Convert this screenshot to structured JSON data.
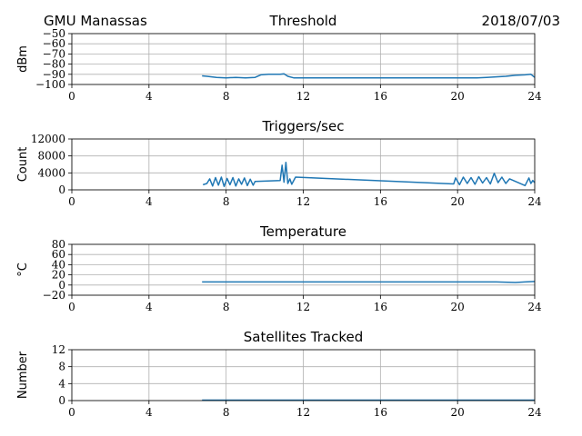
{
  "header": {
    "station": "GMU Manassas",
    "date": "2018/07/03"
  },
  "colors": {
    "series": "#1f77b4",
    "grid": "#b0b0b0",
    "axis": "#000000"
  },
  "chart_data": [
    {
      "type": "line",
      "title": "Threshold",
      "ylabel": "dBm",
      "xlim": [
        0,
        24
      ],
      "ylim": [
        -100,
        -50
      ],
      "xticks": [
        0,
        4,
        8,
        12,
        16,
        20,
        24
      ],
      "yticks": [
        -100,
        -90,
        -80,
        -70,
        -60,
        -50
      ],
      "ytick_labels": [
        "−100",
        "−90",
        "−80",
        "−70",
        "−60",
        "−50"
      ],
      "grid": true,
      "series": [
        {
          "x": [
            6.75,
            7.0,
            7.5,
            8.0,
            8.5,
            9.0,
            9.5,
            9.8,
            10.2,
            10.8,
            11.0,
            11.2,
            11.5,
            12,
            14,
            16,
            18,
            20,
            20.5,
            21,
            21.5,
            22,
            22.5,
            23.0,
            23.5,
            23.8,
            24.0
          ],
          "y": [
            -91.5,
            -92,
            -93,
            -93.5,
            -93,
            -93.5,
            -93,
            -90.5,
            -90,
            -90,
            -89.5,
            -92,
            -93.5,
            -93.5,
            -93.5,
            -93.5,
            -93.5,
            -93.5,
            -93.5,
            -93.5,
            -93,
            -92.5,
            -92,
            -91,
            -90.5,
            -90,
            -93
          ]
        }
      ]
    },
    {
      "type": "line",
      "title": "Triggers/sec",
      "ylabel": "Count",
      "xlim": [
        0,
        24
      ],
      "ylim": [
        0,
        12000
      ],
      "xticks": [
        0,
        4,
        8,
        12,
        16,
        20,
        24
      ],
      "yticks": [
        0,
        4000,
        8000,
        12000
      ],
      "ytick_labels": [
        "0",
        "4000",
        "8000",
        "12000"
      ],
      "grid": true,
      "series": [
        {
          "x": [
            6.8,
            7.0,
            7.15,
            7.3,
            7.45,
            7.6,
            7.75,
            7.9,
            8.05,
            8.2,
            8.35,
            8.5,
            8.65,
            8.8,
            8.95,
            9.1,
            9.25,
            9.4,
            9.5,
            10.8,
            10.9,
            11.0,
            11.1,
            11.2,
            11.3,
            11.4,
            11.6,
            19.8,
            19.9,
            20.1,
            20.3,
            20.5,
            20.7,
            20.9,
            21.1,
            21.3,
            21.5,
            21.7,
            21.9,
            22.1,
            22.3,
            22.5,
            22.7,
            23.5,
            23.7,
            23.8,
            23.9,
            24.0
          ],
          "y": [
            1200,
            1500,
            2600,
            900,
            2900,
            1100,
            3000,
            800,
            2700,
            1200,
            2900,
            900,
            2600,
            1300,
            2800,
            1000,
            2500,
            1100,
            2000,
            2200,
            5800,
            1800,
            6500,
            1500,
            2600,
            1300,
            3000,
            1400,
            2800,
            1200,
            3000,
            1500,
            2900,
            1300,
            3100,
            1600,
            2900,
            1400,
            3900,
            1700,
            3000,
            1500,
            2600,
            1000,
            2800,
            1500,
            2200,
            1700
          ]
        }
      ]
    },
    {
      "type": "line",
      "title": "Temperature",
      "ylabel": "°C",
      "xlim": [
        0,
        24
      ],
      "ylim": [
        -20,
        80
      ],
      "xticks": [
        0,
        4,
        8,
        12,
        16,
        20,
        24
      ],
      "yticks": [
        -20,
        0,
        20,
        40,
        60,
        80
      ],
      "ytick_labels": [
        "−20",
        "0",
        "20",
        "40",
        "60",
        "80"
      ],
      "grid": true,
      "series": [
        {
          "x": [
            6.75,
            10,
            14,
            18,
            22,
            22.6,
            23.0,
            23.5,
            24.0
          ],
          "y": [
            6,
            6,
            6,
            6,
            6,
            5.5,
            5,
            6,
            7
          ]
        }
      ]
    },
    {
      "type": "line",
      "title": "Satellites Tracked",
      "ylabel": "Number",
      "xlim": [
        0,
        24
      ],
      "ylim": [
        0,
        12
      ],
      "xticks": [
        0,
        4,
        8,
        12,
        16,
        20,
        24
      ],
      "yticks": [
        0,
        4,
        8,
        12
      ],
      "ytick_labels": [
        "0",
        "4",
        "8",
        "12"
      ],
      "grid": true,
      "series": [
        {
          "x": [
            6.75,
            24.0
          ],
          "y": [
            0.1,
            0.1
          ]
        }
      ]
    }
  ]
}
